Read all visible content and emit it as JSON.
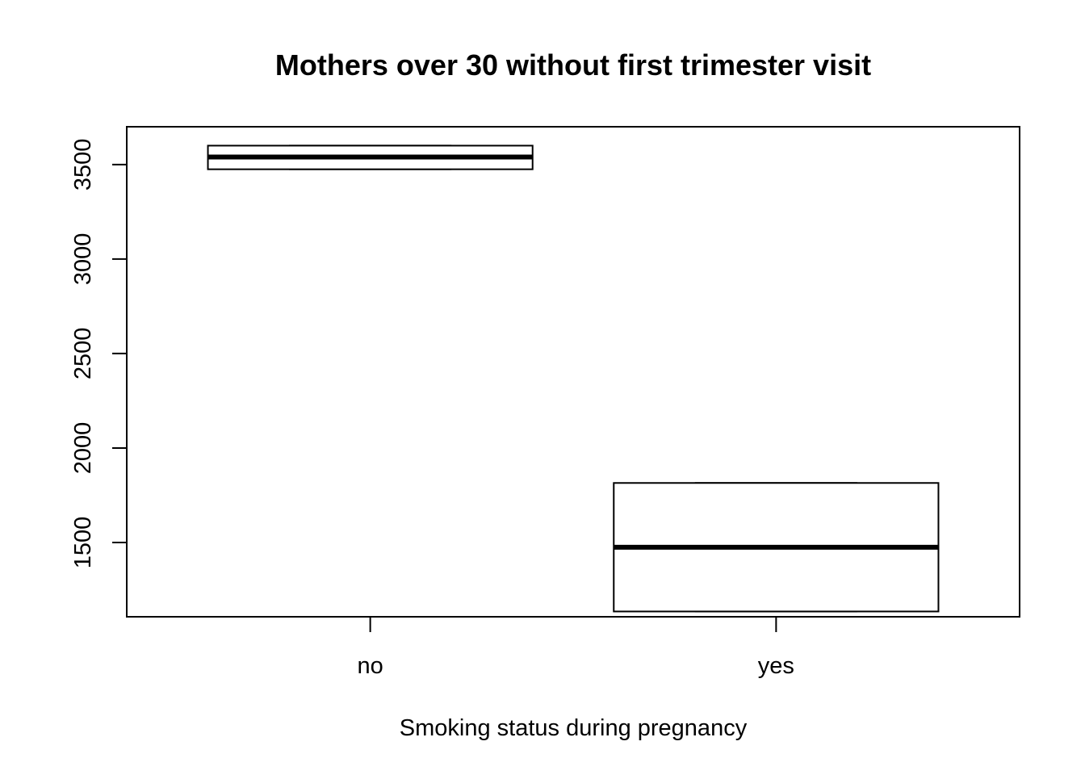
{
  "chart_data": {
    "type": "boxplot",
    "title": "Mothers over 30 without first trimester visit",
    "xlabel": "Smoking status during pregnancy",
    "ylabel": "",
    "categories": [
      "no",
      "yes"
    ],
    "boxes": [
      {
        "category": "no",
        "min": 3475,
        "q1": 3475,
        "median": 3540,
        "q3": 3600,
        "max": 3600
      },
      {
        "category": "yes",
        "min": 1135,
        "q1": 1135,
        "median": 1475,
        "q3": 1815,
        "max": 1815
      }
    ],
    "ylim": [
      1107,
      3700
    ],
    "yticks": [
      1500,
      2000,
      2500,
      3000,
      3500
    ],
    "grid": false,
    "legend": "none"
  }
}
